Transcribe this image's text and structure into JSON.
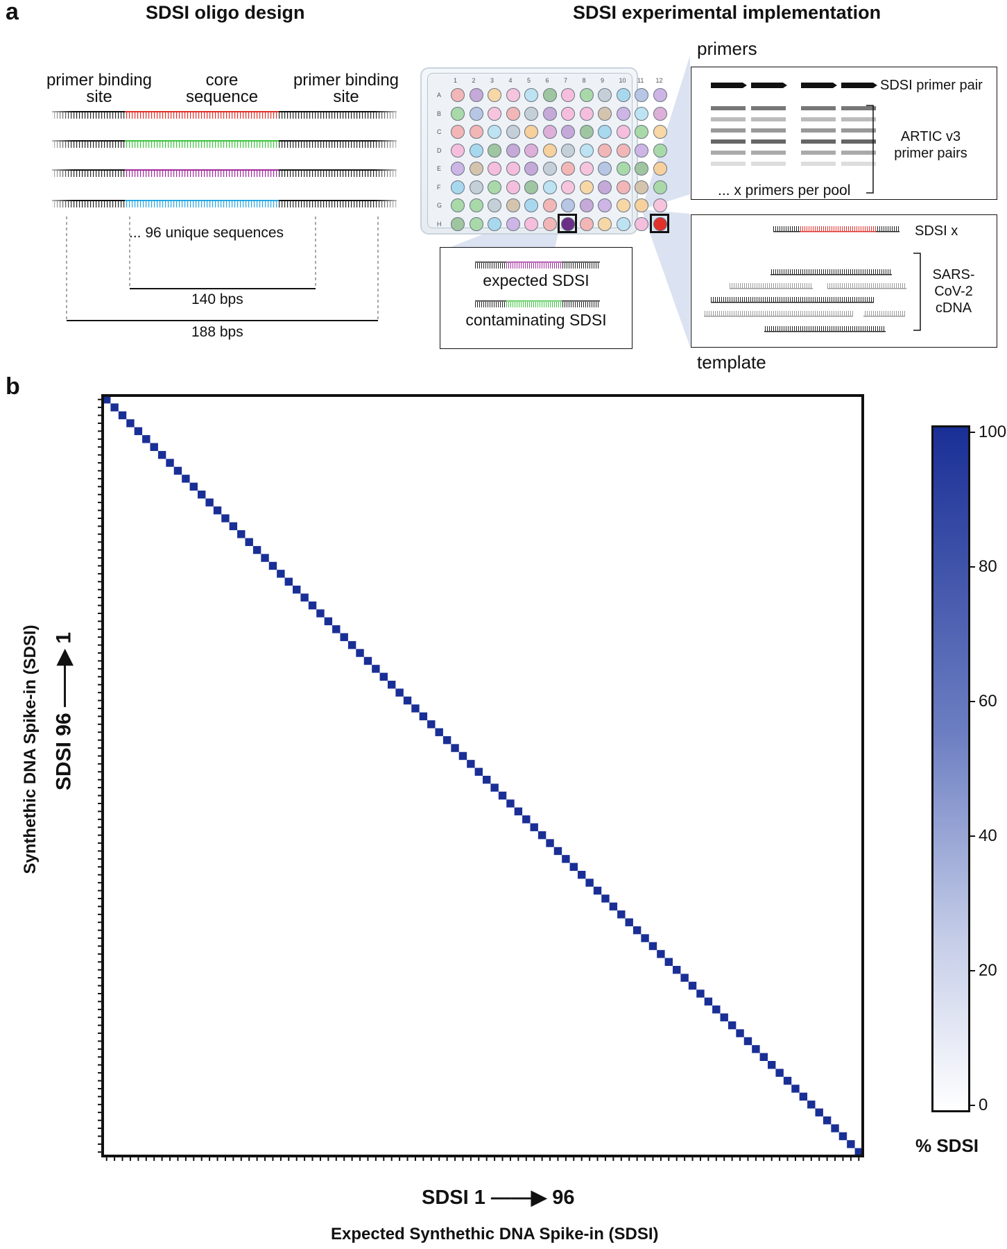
{
  "panel_a": {
    "letter": "a",
    "left_title": "SDSI oligo design",
    "right_title": "SDSI experimental implementation",
    "oligo": {
      "primer_site_left": [
        "primer binding",
        "site"
      ],
      "core": [
        "core",
        "sequence"
      ],
      "primer_site_right": [
        "primer binding",
        "site"
      ],
      "unique_note": "... 96 unique sequences",
      "core_length": "140 bps",
      "total_length": "188 bps",
      "strand_colors": [
        "#e0302a",
        "#3cc23c",
        "#a0289a",
        "#27a6e0"
      ]
    },
    "plate": {
      "col_labels": [
        "1",
        "2",
        "3",
        "4",
        "5",
        "6",
        "7",
        "8",
        "9",
        "10",
        "11",
        "12"
      ],
      "row_labels": [
        "A",
        "B",
        "C",
        "D",
        "E",
        "F",
        "G",
        "H"
      ]
    },
    "contamination_box": {
      "expected": "expected SDSI",
      "contaminating": "contaminating SDSI"
    },
    "primers_box": {
      "header": "primers",
      "pair_label": "SDSI primer pair",
      "artic_label": [
        "ARTIC v3",
        "primer pairs"
      ],
      "pool_note": "... x primers per pool"
    },
    "template_box": {
      "sdsi_label": "SDSI x",
      "sars_label": [
        "SARS-",
        "CoV-2",
        "cDNA"
      ],
      "footer": "template"
    }
  },
  "panel_b": {
    "letter": "b",
    "y_title": "Synthethic DNA Spike-in (SDSI)",
    "y_range_label": "SDSI 96 ——▶ 1",
    "x_range_label": "SDSI 1 ——▶ 96",
    "x_title": "Expected Synthethic DNA Spike-in (SDSI)",
    "colorbar": {
      "label": "% SDSI",
      "ticks": [
        "100",
        "80",
        "60",
        "40",
        "20",
        "0"
      ],
      "low_color": "#ffffff",
      "high_color": "#1a2f96"
    }
  },
  "chart_data": {
    "type": "heatmap",
    "xlabel": "Expected Synthethic DNA Spike-in (SDSI)",
    "ylabel": "Synthethic DNA Spike-in (SDSI)",
    "n": 96,
    "diagonal_value": 100,
    "off_diagonal_value": 0,
    "value_range": [
      0,
      100
    ],
    "colorbar_label": "% SDSI"
  }
}
